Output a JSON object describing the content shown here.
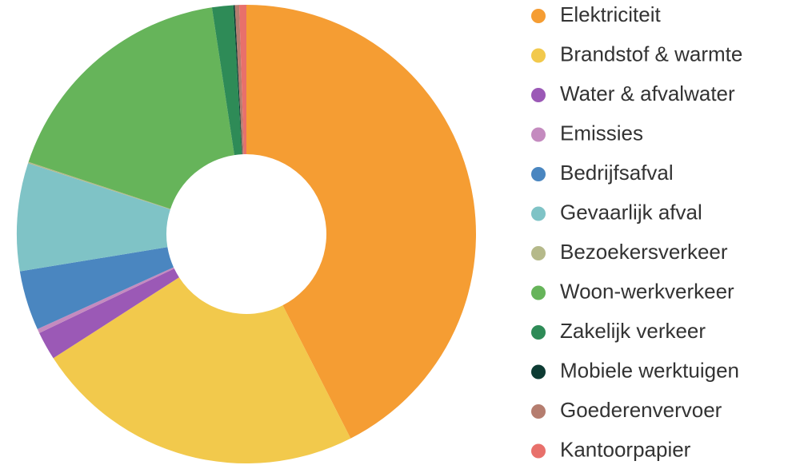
{
  "chart_data": {
    "type": "donut",
    "categories": [
      "Elektriciteit",
      "Brandstof & warmte",
      "Water & afvalwater",
      "Emissies",
      "Bedrijfsafval",
      "Gevaarlijk afval",
      "Bezoekersverkeer",
      "Woon-werkverkeer",
      "Zakelijk verkeer",
      "Mobiele werktuigen",
      "Goederenvervoer",
      "Kantoorpapier"
    ],
    "values": [
      42.5,
      23.4,
      2,
      0.3,
      4.2,
      7.6,
      0.1,
      17.5,
      1.5,
      0.1,
      0.3,
      0.5
    ],
    "colors": [
      "#f59d33",
      "#f2c94c",
      "#9b59b6",
      "#c48bbf",
      "#4a86c0",
      "#7fc3c6",
      "#b5b98a",
      "#66b45a",
      "#2e8b57",
      "#0d3b33",
      "#b57d6f",
      "#e8706b"
    ],
    "legend": "right"
  }
}
